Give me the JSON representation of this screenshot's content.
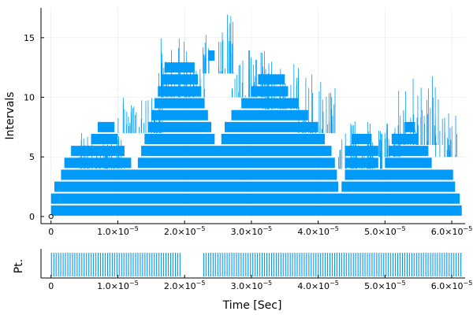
{
  "chart_data": [
    {
      "type": "bar",
      "subtype": "interval-stack",
      "ylabel": "Intervals",
      "xlabel": "",
      "grid": true,
      "legend": "none",
      "color": "#009af9",
      "xlim": [
        -1.5e-06,
        6.2e-05
      ],
      "ylim": [
        -0.6,
        17.5
      ],
      "y_ticks": [
        0,
        5,
        10,
        15
      ],
      "x_ticks": [
        0,
        1e-05,
        2e-05,
        3e-05,
        4e-05,
        5e-05,
        6e-05
      ],
      "x_tick_labels": [
        {
          "mantissa": "0",
          "exponent": ""
        },
        {
          "mantissa": "1.0×10",
          "exponent": "−5"
        },
        {
          "mantissa": "2.0×10",
          "exponent": "−5"
        },
        {
          "mantissa": "3.0×10",
          "exponent": "−5"
        },
        {
          "mantissa": "4.0×10",
          "exponent": "−5"
        },
        {
          "mantissa": "5.0×10",
          "exponent": "−5"
        },
        {
          "mantissa": "6.0×10",
          "exponent": "−5"
        }
      ],
      "start_marker": {
        "x": 0,
        "y": 0
      },
      "series": [
        {
          "values": [
            [
              0.0,
              6.15,
              0
            ],
            [
              0.0,
              6.12,
              1
            ],
            [
              0.05,
              4.3,
              2
            ],
            [
              0.15,
              4.28,
              3
            ],
            [
              0.2,
              1.2,
              4
            ],
            [
              0.3,
              1.1,
              5
            ],
            [
              0.6,
              1.0,
              6
            ],
            [
              4.35,
              6.05,
              2
            ],
            [
              4.4,
              6.02,
              3
            ],
            [
              4.4,
              4.9,
              4
            ],
            [
              1.3,
              4.25,
              4
            ],
            [
              1.35,
              4.2,
              5
            ],
            [
              1.4,
              2.45,
              6
            ],
            [
              2.55,
              4.1,
              6
            ],
            [
              2.6,
              4.0,
              7
            ],
            [
              2.7,
              3.85,
              8
            ],
            [
              2.85,
              3.7,
              9
            ],
            [
              3.0,
              3.55,
              10
            ],
            [
              4.4,
              4.9,
              5
            ],
            [
              5.0,
              5.7,
              4
            ],
            [
              5.05,
              5.65,
              5
            ],
            [
              5.1,
              5.5,
              6
            ],
            [
              0.7,
              0.95,
              7
            ],
            [
              3.1,
              3.5,
              11
            ],
            [
              4.5,
              4.8,
              6
            ],
            [
              5.3,
              5.45,
              7
            ],
            [
              1.45,
              2.4,
              7
            ],
            [
              1.5,
              2.35,
              8
            ],
            [
              1.55,
              2.3,
              9
            ],
            [
              1.6,
              2.25,
              10
            ],
            [
              1.65,
              2.2,
              11
            ],
            [
              1.7,
              2.15,
              12
            ],
            [
              2.35,
              2.45,
              13
            ]
          ]
        },
        {
          "values": [
            0,
            0.15,
            0.55,
            1.0,
            1.25,
            1.8,
            2.3,
            2.5,
            2.95,
            3.4,
            3.9,
            4.3,
            4.8,
            5.25,
            5.8,
            6.1
          ]
        }
      ]
    },
    {
      "type": "bar",
      "subtype": "events",
      "ylabel": "Pt.",
      "xlabel": "Time [Sec]",
      "grid": false,
      "legend": "none",
      "color": "#009af9",
      "xlim": [
        -1.5e-06,
        6.2e-05
      ],
      "x_ticks": [
        0,
        1e-05,
        2e-05,
        3e-05,
        4e-05,
        5e-05,
        6e-05
      ],
      "x_tick_labels": [
        {
          "mantissa": "0",
          "exponent": ""
        },
        {
          "mantissa": "1.0×10",
          "exponent": "−5"
        },
        {
          "mantissa": "2.0×10",
          "exponent": "−5"
        },
        {
          "mantissa": "3.0×10",
          "exponent": "−5"
        },
        {
          "mantissa": "4.0×10",
          "exponent": "−5"
        },
        {
          "mantissa": "5.0×10",
          "exponent": "−5"
        },
        {
          "mantissa": "6.0×10",
          "exponent": "−5"
        }
      ],
      "event_segments": [
        [
          0.0,
          1.95e-05
        ],
        [
          2.28e-05,
          6.14e-05
        ]
      ],
      "event_spacing": 3.5e-07
    }
  ]
}
